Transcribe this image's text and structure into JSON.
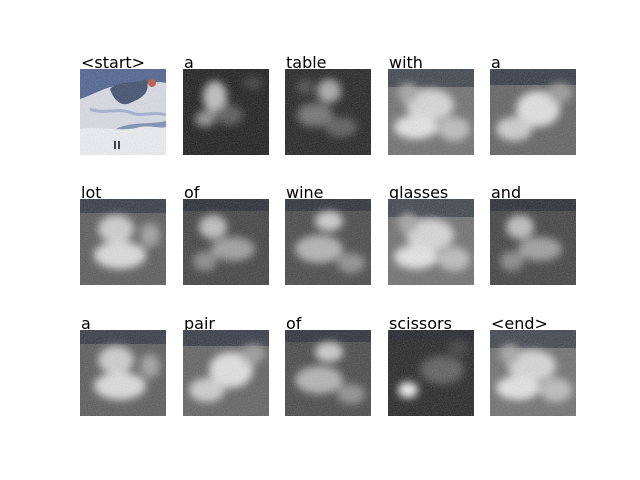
{
  "tokens": [
    {
      "word": "<start>",
      "map": "original"
    },
    {
      "word": "a",
      "map": "dark"
    },
    {
      "word": "table",
      "map": "dark"
    },
    {
      "word": "with",
      "map": "light"
    },
    {
      "word": "a",
      "map": "light"
    },
    {
      "word": "lot",
      "map": "light"
    },
    {
      "word": "of",
      "map": "medium"
    },
    {
      "word": "wine",
      "map": "medium"
    },
    {
      "word": "glasses",
      "map": "light"
    },
    {
      "word": "and",
      "map": "medium"
    },
    {
      "word": "a",
      "map": "light"
    },
    {
      "word": "pair",
      "map": "light"
    },
    {
      "word": "of",
      "map": "medium"
    },
    {
      "word": "scissors",
      "map": "dark-spot"
    },
    {
      "word": "<end>",
      "map": "light"
    }
  ]
}
